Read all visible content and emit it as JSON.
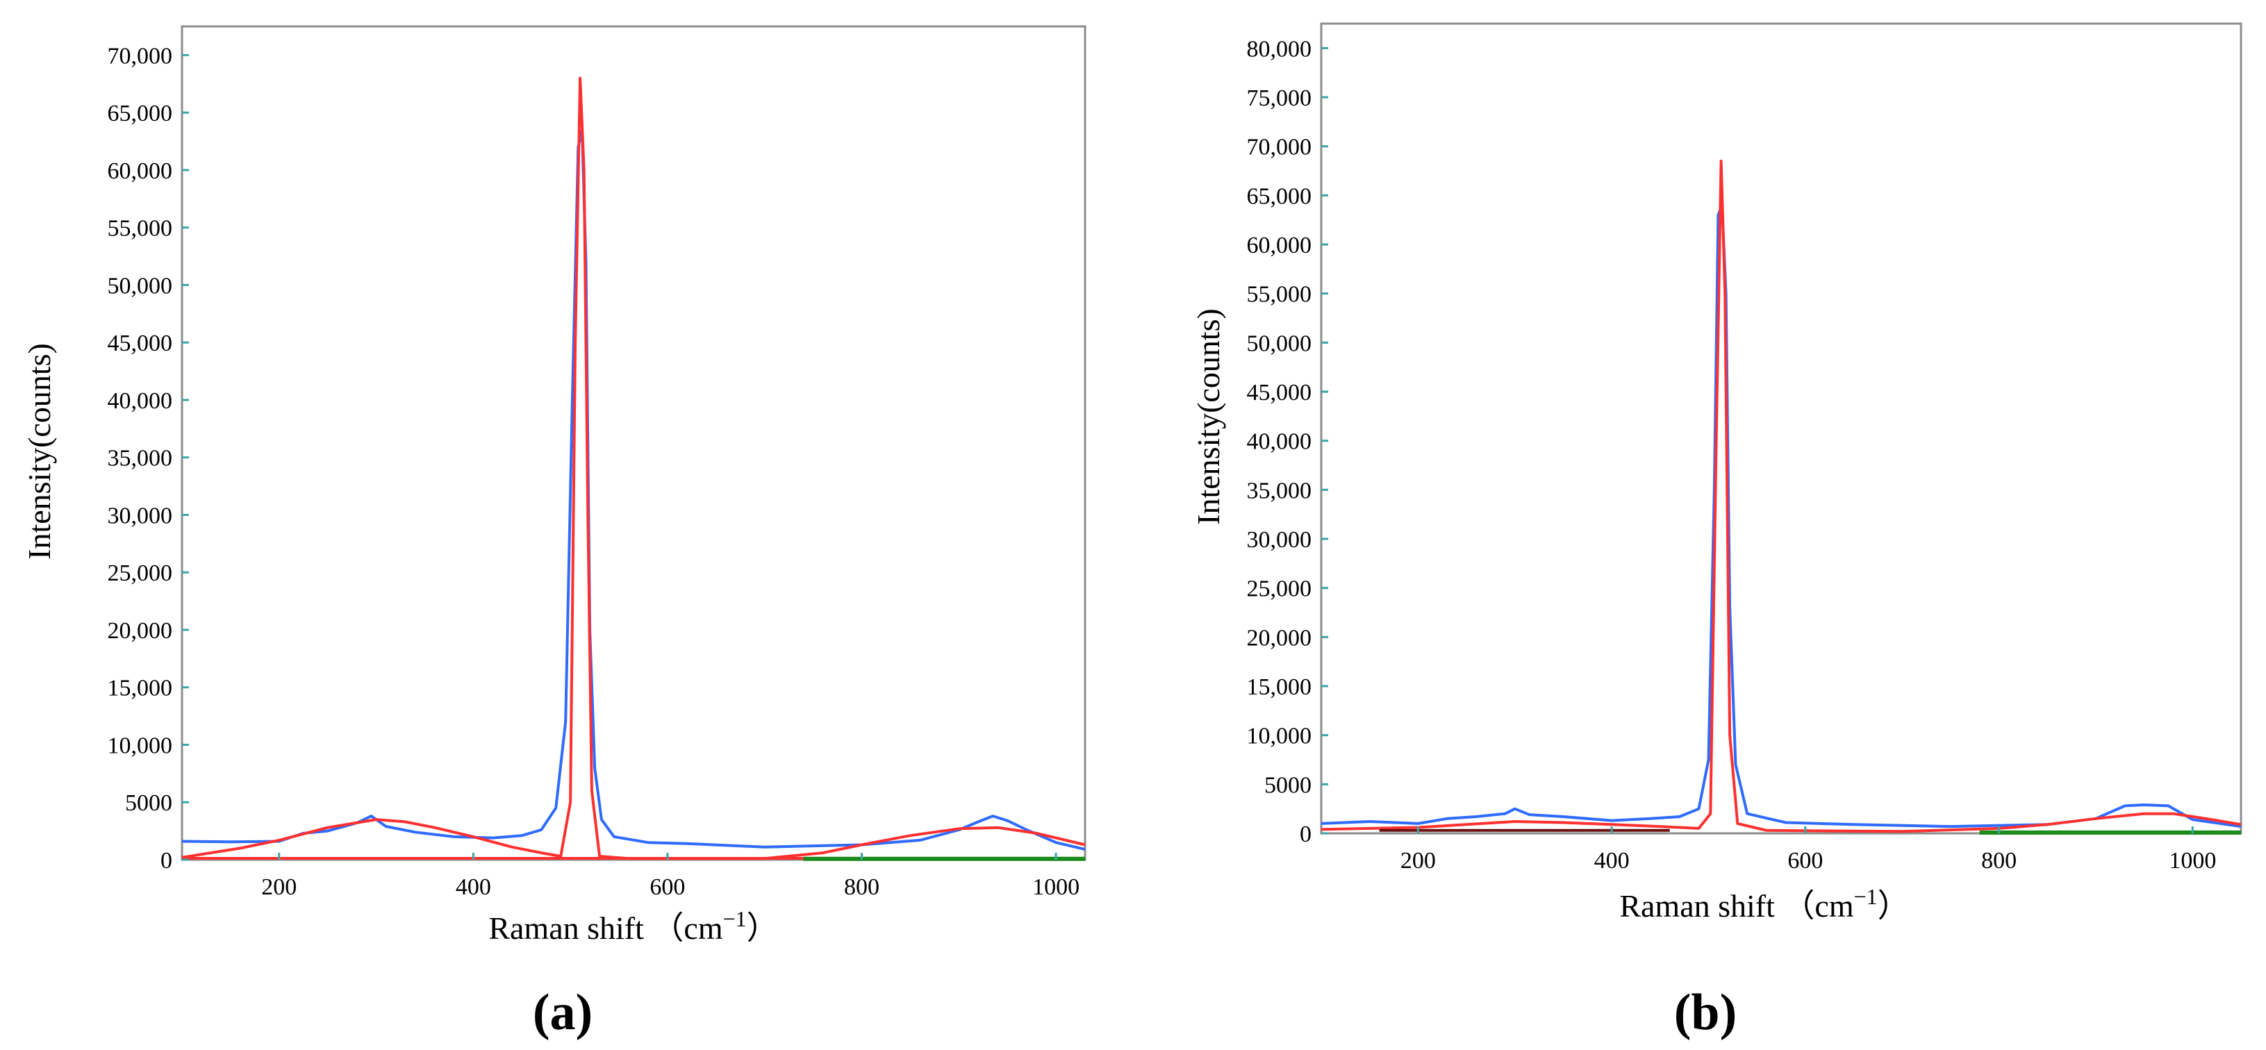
{
  "colors": {
    "blue_series": "#2f6bff",
    "red_series": "#ff3030",
    "green_series": "#1a8a1a",
    "dark_series": "#6a0f0f",
    "frame": "#8c8c8c",
    "tick_mark": "#3aa6a6"
  },
  "chart_data": [
    {
      "type": "line",
      "panel_label": "a",
      "xlabel": "Raman shift （cm",
      "xlabel_sup": "−1",
      "xlabel_end": "）",
      "ylabel": "Intensity(counts)",
      "xlim": [
        100,
        1030
      ],
      "ylim": [
        0,
        72500
      ],
      "grid": false,
      "x_ticks": [
        200,
        400,
        600,
        800,
        1000
      ],
      "x_tick_labels": [
        "200",
        "400",
        "600",
        "800",
        "1000"
      ],
      "y_ticks": [
        0,
        5000,
        10000,
        15000,
        20000,
        25000,
        30000,
        35000,
        40000,
        45000,
        50000,
        55000,
        60000,
        65000,
        70000
      ],
      "y_tick_labels": [
        "0",
        "5000",
        "10,000",
        "15,000",
        "20,000",
        "25,000",
        "30,000",
        "35,000",
        "40,000",
        "45,000",
        "50,000",
        "55,000",
        "60,000",
        "65,000",
        "70,000"
      ],
      "series": [
        {
          "color_key": "blue_series",
          "x": [
            100,
            150,
            200,
            225,
            250,
            280,
            295,
            310,
            340,
            380,
            420,
            450,
            470,
            485,
            495,
            502,
            508,
            512,
            516,
            520,
            525,
            532,
            545,
            580,
            620,
            700,
            800,
            860,
            900,
            920,
            935,
            950,
            970,
            1000,
            1030
          ],
          "y": [
            1600,
            1550,
            1600,
            2300,
            2500,
            3200,
            3800,
            2900,
            2400,
            2000,
            1900,
            2100,
            2600,
            4500,
            12000,
            40000,
            62000,
            63500,
            52000,
            20000,
            8000,
            3500,
            2000,
            1500,
            1400,
            1100,
            1300,
            1700,
            2600,
            3300,
            3800,
            3400,
            2600,
            1500,
            900
          ]
        },
        {
          "color_key": "red_series",
          "x": [
            100,
            160,
            200,
            250,
            300,
            330,
            360,
            400,
            440,
            470,
            490,
            500,
            505,
            510,
            514,
            518,
            522,
            530,
            560,
            700,
            760,
            800,
            850,
            900,
            940,
            980,
            1030
          ],
          "y": [
            200,
            1000,
            1700,
            2800,
            3500,
            3300,
            2800,
            2000,
            1100,
            600,
            300,
            5000,
            45000,
            68000,
            60000,
            30000,
            6000,
            300,
            100,
            100,
            600,
            1300,
            2100,
            2700,
            2800,
            2300,
            1300
          ]
        },
        {
          "color_key": "red_series",
          "x": [
            100,
            1030
          ],
          "y": [
            120,
            120
          ]
        },
        {
          "color_key": "green_series",
          "x": [
            740,
            1030
          ],
          "y": [
            80,
            80
          ]
        }
      ]
    },
    {
      "type": "line",
      "panel_label": "b",
      "xlabel": "Raman shift （cm",
      "xlabel_sup": "−1",
      "xlabel_end": "）",
      "ylabel": "Intensity(counts)",
      "xlim": [
        100,
        1050
      ],
      "ylim": [
        0,
        82500
      ],
      "grid": false,
      "x_ticks": [
        200,
        400,
        600,
        800,
        1000
      ],
      "x_tick_labels": [
        "200",
        "400",
        "600",
        "800",
        "1000"
      ],
      "y_ticks": [
        0,
        5000,
        10000,
        15000,
        20000,
        25000,
        30000,
        35000,
        40000,
        45000,
        50000,
        55000,
        60000,
        65000,
        70000,
        75000,
        80000
      ],
      "y_tick_labels": [
        "0",
        "5000",
        "10,000",
        "15,000",
        "20,000",
        "25,000",
        "30,000",
        "35,000",
        "40,000",
        "45,000",
        "50,000",
        "55,000",
        "60,000",
        "65,000",
        "70,000",
        "75,000",
        "80,000"
      ],
      "series": [
        {
          "color_key": "blue_series",
          "x": [
            100,
            150,
            200,
            230,
            260,
            290,
            300,
            315,
            350,
            400,
            440,
            470,
            490,
            500,
            506,
            510,
            514,
            518,
            522,
            528,
            540,
            580,
            650,
            750,
            850,
            900,
            930,
            950,
            975,
            1000,
            1050
          ],
          "y": [
            1000,
            1200,
            1000,
            1500,
            1700,
            2000,
            2500,
            1900,
            1700,
            1300,
            1500,
            1700,
            2500,
            7500,
            35000,
            63000,
            64000,
            55000,
            23000,
            7000,
            2000,
            1100,
            900,
            700,
            900,
            1500,
            2800,
            2900,
            2800,
            1400,
            700
          ]
        },
        {
          "color_key": "red_series",
          "x": [
            100,
            200,
            300,
            350,
            400,
            450,
            490,
            502,
            508,
            513,
            517,
            522,
            530,
            560,
            700,
            800,
            850,
            900,
            950,
            980,
            1020,
            1050
          ],
          "y": [
            400,
            600,
            1200,
            1100,
            900,
            700,
            500,
            2000,
            40000,
            68500,
            55000,
            10000,
            1000,
            300,
            200,
            500,
            900,
            1500,
            2000,
            2000,
            1400,
            900
          ]
        },
        {
          "color_key": "dark_series",
          "x": [
            160,
            460
          ],
          "y": [
            300,
            300
          ]
        },
        {
          "color_key": "green_series",
          "x": [
            780,
            1050
          ],
          "y": [
            80,
            80
          ]
        }
      ]
    }
  ]
}
